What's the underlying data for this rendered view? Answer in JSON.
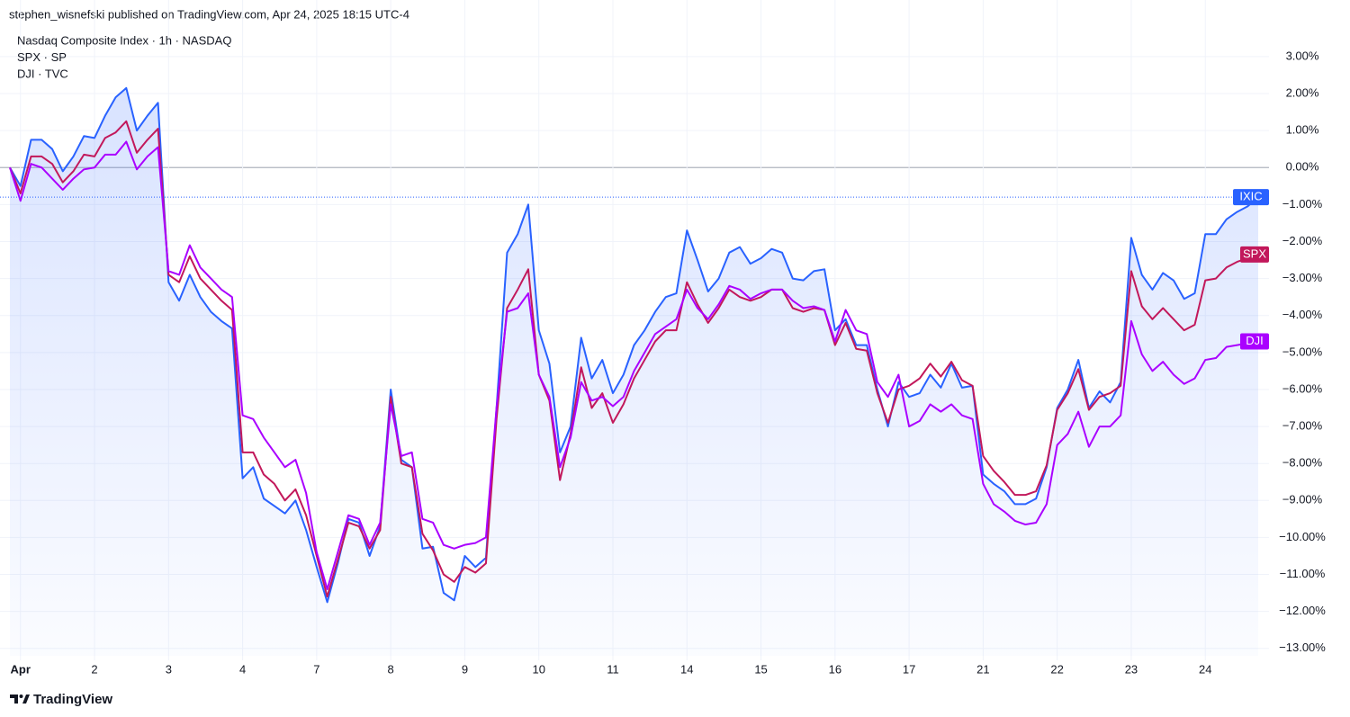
{
  "header": "stephen_wisnefski published on TradingView.com, Apr 24, 2025 18:15 UTC-4",
  "footer": "TradingView",
  "chart_data": {
    "type": "line",
    "categories": [
      null,
      "Apr",
      null,
      null,
      null,
      null,
      null,
      null,
      "2",
      null,
      null,
      null,
      null,
      null,
      null,
      "3",
      null,
      null,
      null,
      null,
      null,
      null,
      "4",
      null,
      null,
      null,
      null,
      null,
      null,
      "7",
      null,
      null,
      null,
      null,
      null,
      null,
      "8",
      null,
      null,
      null,
      null,
      null,
      null,
      "9",
      null,
      null,
      null,
      null,
      null,
      null,
      "10",
      null,
      null,
      null,
      null,
      null,
      null,
      "11",
      null,
      null,
      null,
      null,
      null,
      null,
      "14",
      null,
      null,
      null,
      null,
      null,
      null,
      "15",
      null,
      null,
      null,
      null,
      null,
      null,
      "16",
      null,
      null,
      null,
      null,
      null,
      null,
      "17",
      null,
      null,
      null,
      null,
      null,
      null,
      "21",
      null,
      null,
      null,
      null,
      null,
      null,
      "22",
      null,
      null,
      null,
      null,
      null,
      null,
      "23",
      null,
      null,
      null,
      null,
      null,
      null,
      "24",
      null,
      null,
      null,
      null,
      null
    ],
    "series": [
      {
        "name": "Nasdaq Composite Index · 1h · NASDAQ",
        "tag": "IXIC",
        "color": "#2962ff",
        "fill": true,
        "values": [
          0,
          -0.5,
          0.75,
          0.75,
          0.5,
          -0.1,
          0.3,
          0.85,
          0.8,
          1.4,
          1.9,
          2.15,
          1.0,
          1.4,
          1.75,
          -3.1,
          -3.6,
          -2.9,
          -3.5,
          -3.9,
          -4.15,
          -4.35,
          -8.4,
          -8.1,
          -8.95,
          -9.15,
          -9.35,
          -9.0,
          -9.8,
          -10.8,
          -11.75,
          -10.7,
          -9.5,
          -9.6,
          -10.5,
          -9.7,
          -6.0,
          -7.9,
          -8.1,
          -10.3,
          -10.25,
          -11.5,
          -11.7,
          -10.5,
          -10.8,
          -10.55,
          -6.5,
          -2.3,
          -1.8,
          -1.0,
          -4.4,
          -5.3,
          -7.7,
          -7.0,
          -4.6,
          -5.7,
          -5.2,
          -6.1,
          -5.6,
          -4.8,
          -4.4,
          -3.9,
          -3.5,
          -3.4,
          -1.7,
          -2.5,
          -3.35,
          -3.0,
          -2.3,
          -2.15,
          -2.6,
          -2.45,
          -2.2,
          -2.3,
          -3.0,
          -3.05,
          -2.8,
          -2.75,
          -4.4,
          -4.1,
          -4.8,
          -4.8,
          -6.0,
          -7.0,
          -5.8,
          -6.2,
          -6.1,
          -5.6,
          -5.95,
          -5.3,
          -5.95,
          -5.9,
          -8.3,
          -8.55,
          -8.75,
          -9.1,
          -9.1,
          -8.95,
          -8.1,
          -6.5,
          -6.0,
          -5.2,
          -6.5,
          -6.05,
          -6.35,
          -5.8,
          -1.9,
          -2.9,
          -3.3,
          -2.85,
          -3.05,
          -3.55,
          -3.4,
          -1.8,
          -1.8,
          -1.4,
          -1.2,
          -1.05,
          -0.8
        ]
      },
      {
        "name": "SPX · SP",
        "tag": "SPX",
        "color": "#c2185b",
        "values": [
          0,
          -0.7,
          0.3,
          0.3,
          0.1,
          -0.4,
          -0.1,
          0.35,
          0.3,
          0.8,
          0.95,
          1.25,
          0.4,
          0.75,
          1.05,
          -2.9,
          -3.1,
          -2.4,
          -3.0,
          -3.3,
          -3.6,
          -3.85,
          -7.7,
          -7.7,
          -8.3,
          -8.55,
          -9.0,
          -8.7,
          -9.4,
          -10.5,
          -11.6,
          -10.6,
          -9.6,
          -9.7,
          -10.3,
          -9.8,
          -6.2,
          -8.0,
          -8.1,
          -9.9,
          -10.35,
          -11.0,
          -11.2,
          -10.8,
          -10.95,
          -10.7,
          -6.8,
          -3.8,
          -3.3,
          -2.75,
          -5.6,
          -6.3,
          -8.45,
          -7.2,
          -5.4,
          -6.5,
          -6.1,
          -6.9,
          -6.4,
          -5.7,
          -5.2,
          -4.7,
          -4.4,
          -4.4,
          -3.1,
          -3.7,
          -4.2,
          -3.8,
          -3.3,
          -3.5,
          -3.6,
          -3.5,
          -3.3,
          -3.3,
          -3.8,
          -3.9,
          -3.8,
          -3.85,
          -4.8,
          -4.2,
          -4.9,
          -4.95,
          -6.1,
          -6.9,
          -6.0,
          -5.9,
          -5.7,
          -5.3,
          -5.65,
          -5.25,
          -5.75,
          -5.9,
          -7.8,
          -8.2,
          -8.5,
          -8.85,
          -8.85,
          -8.75,
          -8.05,
          -6.55,
          -6.1,
          -5.45,
          -6.55,
          -6.2,
          -6.1,
          -5.9,
          -2.8,
          -3.75,
          -4.1,
          -3.8,
          -4.1,
          -4.4,
          -4.25,
          -3.05,
          -3.0,
          -2.7,
          -2.55,
          -2.45,
          -2.35
        ]
      },
      {
        "name": "DJI · TVC",
        "tag": "DJI",
        "color": "#aa00ff",
        "values": [
          0,
          -0.9,
          0.1,
          0.0,
          -0.3,
          -0.6,
          -0.3,
          -0.05,
          0.0,
          0.35,
          0.35,
          0.7,
          -0.05,
          0.3,
          0.55,
          -2.8,
          -2.9,
          -2.1,
          -2.7,
          -3.0,
          -3.3,
          -3.5,
          -6.7,
          -6.8,
          -7.3,
          -7.7,
          -8.1,
          -7.9,
          -8.8,
          -10.4,
          -11.4,
          -10.4,
          -9.4,
          -9.5,
          -10.2,
          -9.6,
          -6.4,
          -7.8,
          -7.7,
          -9.5,
          -9.6,
          -10.2,
          -10.3,
          -10.2,
          -10.15,
          -10.0,
          -6.5,
          -3.9,
          -3.8,
          -3.4,
          -5.6,
          -6.2,
          -8.1,
          -7.3,
          -5.8,
          -6.3,
          -6.2,
          -6.45,
          -6.2,
          -5.5,
          -5.0,
          -4.5,
          -4.3,
          -4.1,
          -3.3,
          -3.8,
          -4.1,
          -3.7,
          -3.2,
          -3.3,
          -3.55,
          -3.4,
          -3.3,
          -3.3,
          -3.6,
          -3.8,
          -3.75,
          -3.85,
          -4.7,
          -3.85,
          -4.4,
          -4.5,
          -5.8,
          -6.2,
          -5.6,
          -7.0,
          -6.85,
          -6.4,
          -6.6,
          -6.4,
          -6.7,
          -6.8,
          -8.55,
          -9.1,
          -9.3,
          -9.55,
          -9.65,
          -9.6,
          -9.1,
          -7.5,
          -7.2,
          -6.6,
          -7.55,
          -7.0,
          -7.0,
          -6.7,
          -4.15,
          -5.05,
          -5.5,
          -5.25,
          -5.6,
          -5.85,
          -5.7,
          -5.2,
          -5.15,
          -4.85,
          -4.8,
          -4.75,
          -4.7
        ]
      }
    ],
    "ylim": [
      -13.2,
      3.8
    ],
    "yticks": [
      {
        "value": 3,
        "label": "3.00%"
      },
      {
        "value": 2,
        "label": "2.00%"
      },
      {
        "value": 1,
        "label": "1.00%"
      },
      {
        "value": 0,
        "label": "0.00%"
      },
      {
        "value": -1,
        "label": "−1.00%"
      },
      {
        "value": -2,
        "label": "−2.00%"
      },
      {
        "value": -3,
        "label": "−3.00%"
      },
      {
        "value": -4,
        "label": "−4.00%"
      },
      {
        "value": -5,
        "label": "−5.00%"
      },
      {
        "value": -6,
        "label": "−6.00%"
      },
      {
        "value": -7,
        "label": "−7.00%"
      },
      {
        "value": -8,
        "label": "−8.00%"
      },
      {
        "value": -9,
        "label": "−9.00%"
      },
      {
        "value": -10,
        "label": "−10.00%"
      },
      {
        "value": -11,
        "label": "−11.00%"
      },
      {
        "value": -12,
        "label": "−12.00%"
      },
      {
        "value": -13,
        "label": "−13.00%"
      }
    ],
    "grid": true
  }
}
